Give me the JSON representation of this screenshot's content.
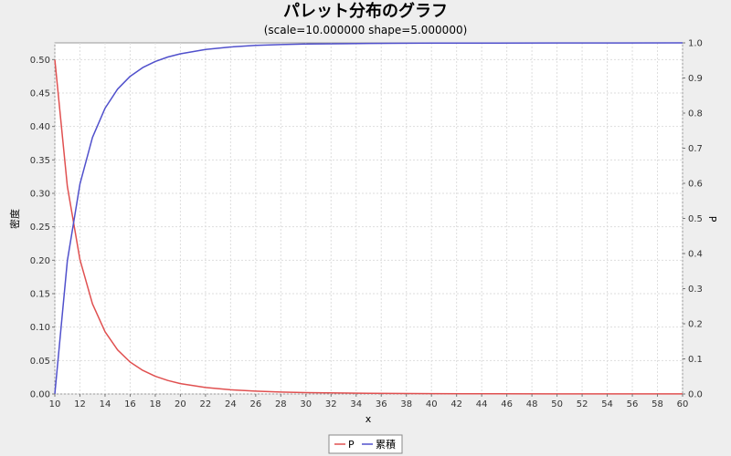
{
  "chart_data": {
    "type": "line",
    "title": "パレット分布のグラフ",
    "subtitle": "(scale=10.000000 shape=5.000000)",
    "xlabel": "x",
    "ylabel_left": "密度",
    "ylabel_right": "P",
    "xlim": [
      10,
      60
    ],
    "ylim_left": [
      0,
      0.525
    ],
    "ylim_right": [
      0,
      1.0
    ],
    "x_ticks": [
      "10",
      "12",
      "14",
      "16",
      "18",
      "20",
      "22",
      "24",
      "26",
      "28",
      "30",
      "32",
      "34",
      "36",
      "38",
      "40",
      "42",
      "44",
      "46",
      "48",
      "50",
      "52",
      "54",
      "56",
      "58",
      "60"
    ],
    "y_left_ticks": [
      "0.00",
      "0.05",
      "0.10",
      "0.15",
      "0.20",
      "0.25",
      "0.30",
      "0.35",
      "0.40",
      "0.45",
      "0.50"
    ],
    "y_right_ticks": [
      "0.0",
      "0.1",
      "0.2",
      "0.3",
      "0.4",
      "0.5",
      "0.6",
      "0.7",
      "0.8",
      "0.9",
      "1.0"
    ],
    "grid": true,
    "legend_position": "bottom",
    "series": [
      {
        "name": "P",
        "axis": "left",
        "color": "#e05050",
        "x": [
          10,
          11,
          12,
          13,
          14,
          15,
          16,
          17,
          18,
          19,
          20,
          22,
          24,
          26,
          28,
          30,
          35,
          40,
          45,
          50,
          55,
          60
        ],
        "values": [
          0.5,
          0.3105,
          0.2009,
          0.1347,
          0.093,
          0.0658,
          0.0477,
          0.0353,
          0.0265,
          0.0202,
          0.0156,
          0.0097,
          0.0063,
          0.0042,
          0.0029,
          0.0021,
          0.0009,
          0.0005,
          0.0003,
          0.0002,
          0.0001,
          0.0001
        ]
      },
      {
        "name": "累積",
        "axis": "right",
        "color": "#5050cc",
        "x": [
          10,
          11,
          12,
          13,
          14,
          15,
          16,
          17,
          18,
          19,
          20,
          22,
          24,
          26,
          28,
          30,
          35,
          40,
          45,
          50,
          55,
          60
        ],
        "values": [
          0.0,
          0.3791,
          0.5981,
          0.7307,
          0.8141,
          0.8683,
          0.9046,
          0.9295,
          0.9471,
          0.9597,
          0.9688,
          0.9813,
          0.9884,
          0.9926,
          0.995,
          0.9966,
          0.9985,
          0.9993,
          0.9996,
          0.9997,
          0.9998,
          0.9999
        ]
      }
    ]
  }
}
